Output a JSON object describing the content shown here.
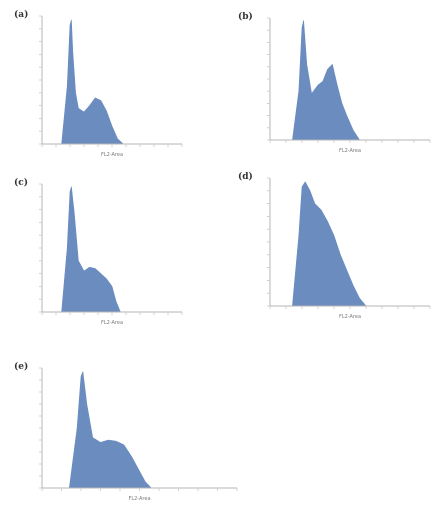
{
  "colors": {
    "fill": "#6a8cbf",
    "axis": "#b5b5b5",
    "tick": "#c8c8c8"
  },
  "chart_data": [
    {
      "panel": "(a)",
      "type": "area",
      "xlabel": "FL2-Area",
      "ylabel": "",
      "xlim": [
        0,
        1
      ],
      "ylim": [
        0,
        1
      ],
      "x": [
        0.0,
        0.14,
        0.18,
        0.2,
        0.21,
        0.22,
        0.24,
        0.26,
        0.3,
        0.34,
        0.38,
        0.42,
        0.46,
        0.5,
        0.54,
        0.58,
        0.62,
        0.66,
        0.7,
        1.0
      ],
      "values": [
        0.0,
        0.0,
        0.45,
        0.93,
        0.97,
        0.72,
        0.4,
        0.28,
        0.25,
        0.3,
        0.36,
        0.34,
        0.26,
        0.14,
        0.04,
        0.0,
        0.0,
        0.0,
        0.0,
        0.0
      ]
    },
    {
      "panel": "(b)",
      "type": "area",
      "xlabel": "FL2-Area",
      "ylabel": "",
      "xlim": [
        0,
        1
      ],
      "ylim": [
        0,
        1
      ],
      "x": [
        0.0,
        0.14,
        0.18,
        0.2,
        0.21,
        0.23,
        0.26,
        0.3,
        0.33,
        0.36,
        0.39,
        0.42,
        0.45,
        0.48,
        0.52,
        0.56,
        0.6,
        1.0
      ],
      "values": [
        0.0,
        0.0,
        0.4,
        0.92,
        0.98,
        0.62,
        0.38,
        0.45,
        0.48,
        0.58,
        0.62,
        0.45,
        0.3,
        0.2,
        0.08,
        0.0,
        0.0,
        0.0
      ],
      "ylim_note": ""
    },
    {
      "panel": "(c)",
      "type": "area",
      "xlabel": "FL2-Area",
      "ylabel": "",
      "xlim": [
        0,
        1
      ],
      "ylim": [
        0,
        1
      ],
      "x": [
        0.0,
        0.14,
        0.18,
        0.2,
        0.21,
        0.23,
        0.26,
        0.3,
        0.34,
        0.38,
        0.42,
        0.46,
        0.5,
        0.53,
        0.56,
        0.6,
        1.0
      ],
      "values": [
        0.0,
        0.0,
        0.5,
        0.94,
        0.98,
        0.78,
        0.4,
        0.32,
        0.35,
        0.34,
        0.3,
        0.26,
        0.2,
        0.08,
        0.0,
        0.0,
        0.0
      ]
    },
    {
      "panel": "(d)",
      "type": "area",
      "xlabel": "FL2-Area",
      "ylabel": "",
      "xlim": [
        0,
        1
      ],
      "ylim": [
        0,
        1
      ],
      "x": [
        0.0,
        0.14,
        0.18,
        0.2,
        0.22,
        0.25,
        0.28,
        0.32,
        0.36,
        0.4,
        0.44,
        0.48,
        0.52,
        0.56,
        0.6,
        0.64,
        1.0
      ],
      "values": [
        0.0,
        0.0,
        0.55,
        0.93,
        0.97,
        0.9,
        0.8,
        0.75,
        0.66,
        0.55,
        0.4,
        0.28,
        0.16,
        0.06,
        0.0,
        0.0,
        0.0
      ]
    },
    {
      "panel": "(e)",
      "type": "area",
      "xlabel": "FL2-Area",
      "ylabel": "",
      "xlim": [
        0,
        1
      ],
      "ylim": [
        0,
        1
      ],
      "x": [
        0.0,
        0.14,
        0.18,
        0.2,
        0.21,
        0.23,
        0.26,
        0.3,
        0.34,
        0.38,
        0.42,
        0.46,
        0.5,
        0.53,
        0.56,
        0.6,
        1.0
      ],
      "values": [
        0.0,
        0.0,
        0.5,
        0.93,
        0.97,
        0.7,
        0.42,
        0.38,
        0.4,
        0.39,
        0.36,
        0.26,
        0.14,
        0.05,
        0.0,
        0.0,
        0.0
      ]
    }
  ]
}
